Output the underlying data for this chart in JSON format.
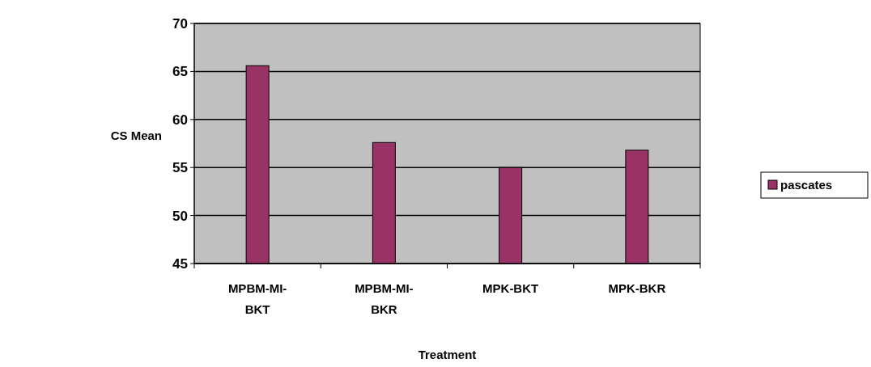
{
  "chart_data": {
    "type": "bar",
    "xlabel": "Treatment",
    "ylabel": "CS Mean",
    "categories": [
      "MPBM-MI-BKT",
      "MPBM-MI-BKR",
      "MPK-BKT",
      "MPK-BKR"
    ],
    "series": [
      {
        "name": "pascates",
        "color": "#993366",
        "values": [
          65.6,
          57.6,
          55,
          56.8
        ]
      }
    ],
    "ylim": [
      45,
      70
    ],
    "yticks": [
      45,
      50,
      55,
      60,
      65,
      70
    ],
    "grid": "y",
    "legend": "right"
  }
}
